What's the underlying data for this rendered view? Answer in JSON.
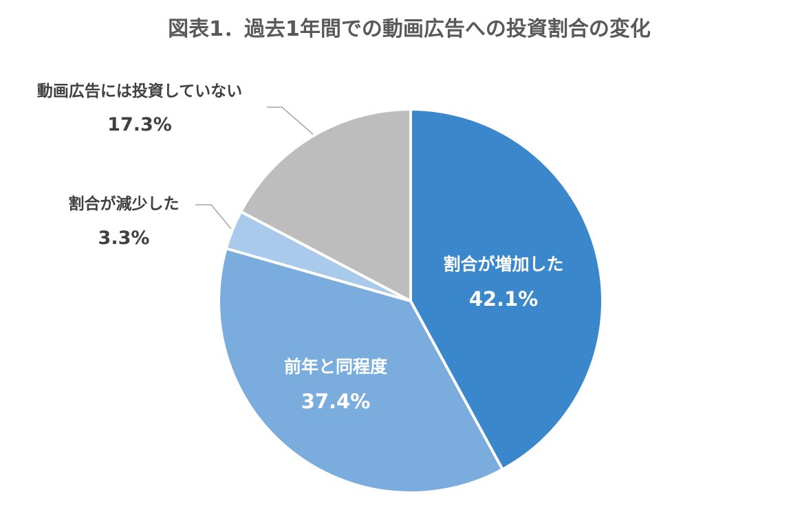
{
  "chart_data": {
    "type": "pie",
    "title": "図表1．過去1年間での動画広告への投資割合の変化",
    "categories": [
      "割合が増加した",
      "前年と同程度",
      "割合が減少した",
      "動画広告には投資していない"
    ],
    "values": [
      42.1,
      37.4,
      3.3,
      17.3
    ],
    "value_labels": [
      "42.1%",
      "37.4%",
      "3.3%",
      "17.3%"
    ],
    "colors": [
      "#3A87CC",
      "#7AADDE",
      "#A9CAEA",
      "#BDBDBD"
    ],
    "start_angle": "12 o'clock",
    "direction": "clockwise",
    "legend": "none",
    "label_style": [
      "inside",
      "inside",
      "outside",
      "outside"
    ]
  }
}
